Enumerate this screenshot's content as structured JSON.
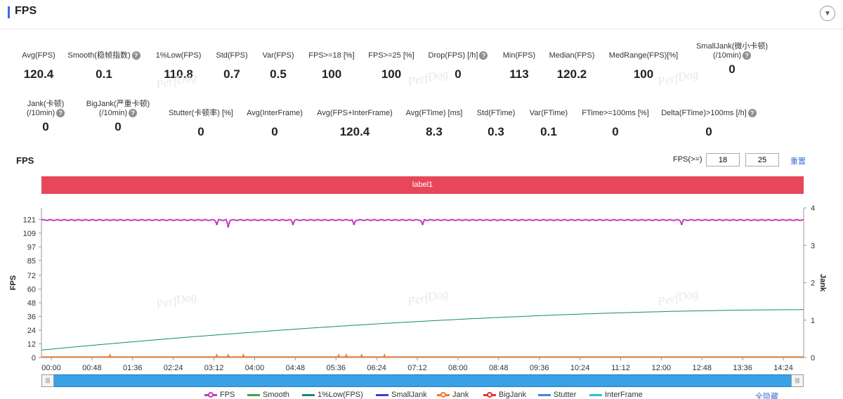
{
  "header": {
    "title": "FPS",
    "collapse_icon": "chevron-down-icon"
  },
  "metrics_row1": [
    {
      "label": "Avg(FPS)",
      "value": "120.4",
      "help": false
    },
    {
      "label": "Smooth(稳帧指数)",
      "value": "0.1",
      "help": true
    },
    {
      "label": "1%Low(FPS)",
      "value": "110.8",
      "help": false
    },
    {
      "label": "Std(FPS)",
      "value": "0.7",
      "help": false
    },
    {
      "label": "Var(FPS)",
      "value": "0.5",
      "help": false
    },
    {
      "label": "FPS>=18 [%]",
      "value": "100",
      "help": false
    },
    {
      "label": "FPS>=25 [%]",
      "value": "100",
      "help": false
    },
    {
      "label": "Drop(FPS) [/h]",
      "value": "0",
      "help": true
    },
    {
      "label": "Min(FPS)",
      "value": "113",
      "help": false
    },
    {
      "label": "Median(FPS)",
      "value": "120.2",
      "help": false
    },
    {
      "label": "MedRange(FPS)[%]",
      "value": "100",
      "help": false
    },
    {
      "label": "SmallJank(微小卡顿)",
      "label2": "(/10min)",
      "value": "0",
      "help": true
    }
  ],
  "metrics_row2": [
    {
      "label": "Jank(卡顿)",
      "label2": "(/10min)",
      "value": "0",
      "help": true
    },
    {
      "label": "BigJank(严重卡顿)",
      "label2": "(/10min)",
      "value": "0",
      "help": true
    },
    {
      "label": "Stutter(卡顿率) [%]",
      "value": "0",
      "help": false
    },
    {
      "label": "Avg(InterFrame)",
      "value": "0",
      "help": false
    },
    {
      "label": "Avg(FPS+InterFrame)",
      "value": "120.4",
      "help": false
    },
    {
      "label": "Avg(FTime) [ms]",
      "value": "8.3",
      "help": false
    },
    {
      "label": "Std(FTime)",
      "value": "0.3",
      "help": false
    },
    {
      "label": "Var(FTime)",
      "value": "0.1",
      "help": false
    },
    {
      "label": "FTime>=100ms [%]",
      "value": "0",
      "help": false
    },
    {
      "label": "Delta(FTime)>100ms [/h]",
      "value": "0",
      "help": true
    }
  ],
  "watermark": "PerfDog",
  "chart_section": {
    "title": "FPS",
    "threshold_label": "FPS(>=)",
    "threshold_1": "18",
    "threshold_2": "25",
    "reset_label": "重置",
    "label_bar": "label1",
    "label_bar_color": "#e8475a"
  },
  "chart_data": {
    "type": "line",
    "ylabel": "FPS",
    "y2label": "Jank",
    "y_ticks": [
      "0",
      "12",
      "24",
      "36",
      "48",
      "60",
      "72",
      "85",
      "97",
      "109",
      "121"
    ],
    "y2_ticks": [
      "0",
      "1",
      "2",
      "3",
      "4"
    ],
    "x_ticks": [
      "00:00",
      "00:48",
      "01:36",
      "02:24",
      "03:12",
      "04:00",
      "04:48",
      "05:36",
      "06:24",
      "07:12",
      "08:00",
      "08:48",
      "09:36",
      "10:24",
      "11:12",
      "12:00",
      "12:48",
      "13:36",
      "14:24"
    ],
    "ylim": [
      0,
      131
    ],
    "y2lim": [
      0,
      4
    ],
    "series": [
      {
        "name": "FPS",
        "color": "#c040b8",
        "baseline": 120.4,
        "dips": [
          {
            "t": 0.23,
            "v": 117
          },
          {
            "t": 0.245,
            "v": 115
          },
          {
            "t": 0.33,
            "v": 117
          },
          {
            "t": 0.41,
            "v": 117
          },
          {
            "t": 0.5,
            "v": 117
          },
          {
            "t": 0.84,
            "v": 117
          }
        ]
      },
      {
        "name": "InterFrame",
        "color": "#13897a",
        "start": 0.2,
        "end": 1.28
      },
      {
        "name": "Jank",
        "color": "#f07b2a",
        "spikes": [
          0.09,
          0.23,
          0.245,
          0.265,
          0.39,
          0.4,
          0.42,
          0.45
        ]
      }
    ]
  },
  "legend": [
    {
      "name": "FPS",
      "color": "#c040b8",
      "dot": true
    },
    {
      "name": "Smooth",
      "color": "#3aa54a",
      "dot": false
    },
    {
      "name": "1%Low(FPS)",
      "color": "#13897a",
      "dot": false
    },
    {
      "name": "SmallJank",
      "color": "#3d3dc9",
      "dot": false
    },
    {
      "name": "Jank",
      "color": "#f07b2a",
      "dot": true
    },
    {
      "name": "BigJank",
      "color": "#e03030",
      "dot": true
    },
    {
      "name": "Stutter",
      "color": "#3b86e0",
      "dot": false
    },
    {
      "name": "InterFrame",
      "color": "#2bc3d6",
      "dot": false
    }
  ],
  "hide_all_label": "全隐藏",
  "slider": {
    "range_start": "00:00",
    "range_end": "14:24"
  }
}
